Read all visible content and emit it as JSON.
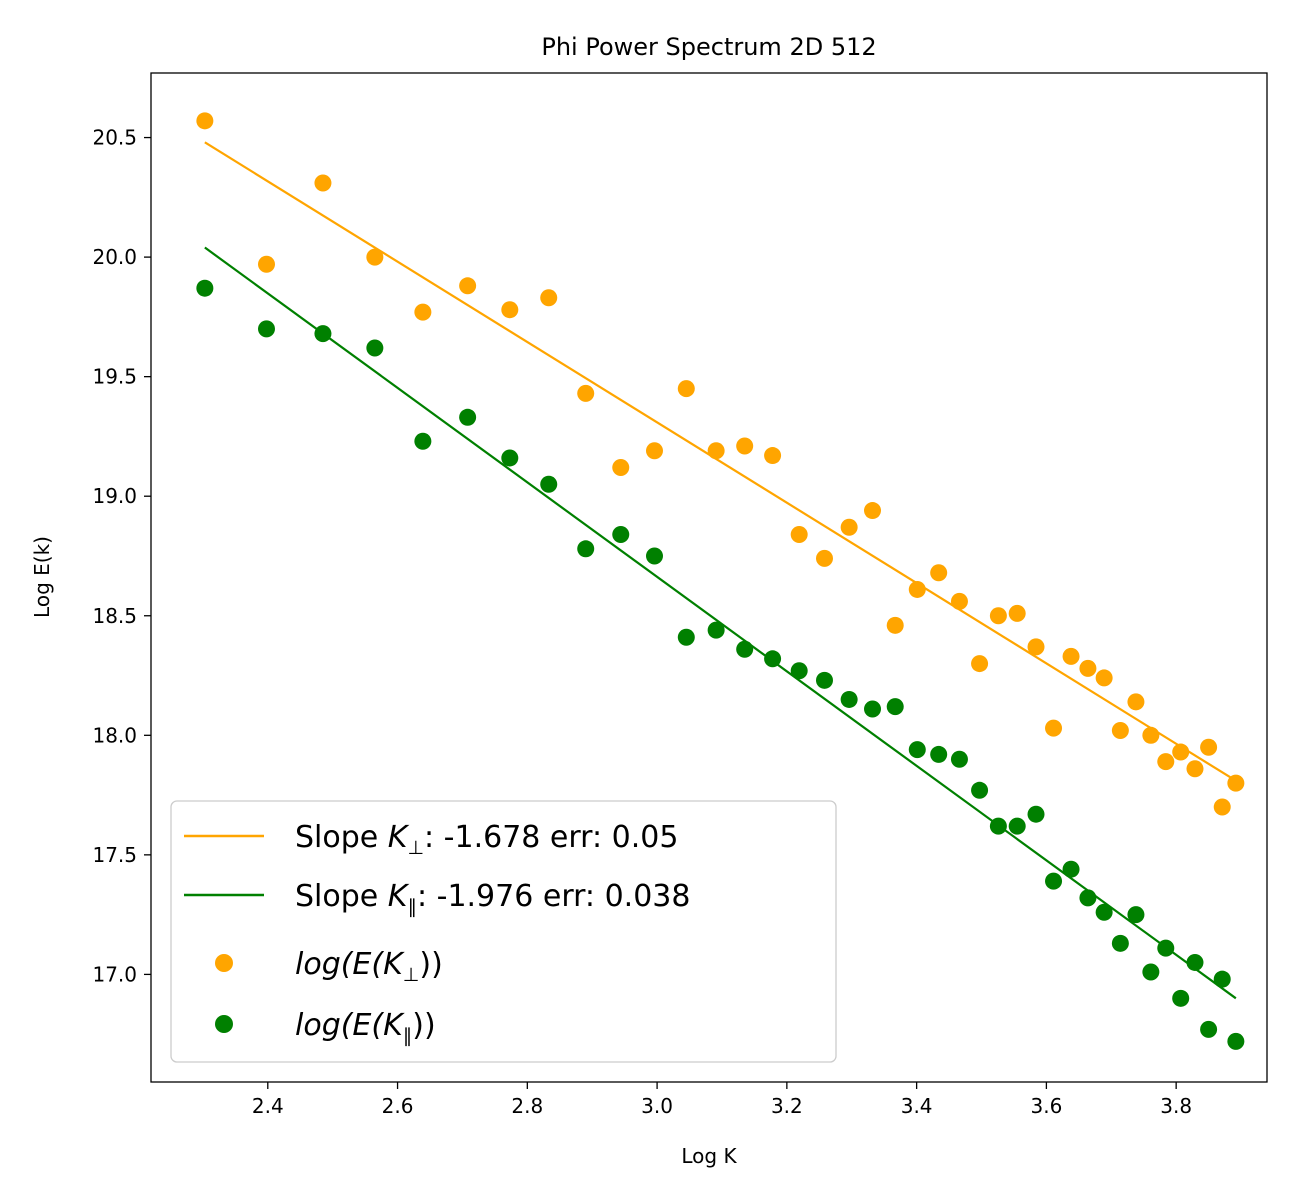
{
  "chart_data": {
    "type": "scatter",
    "title": "Phi Power Spectrum 2D 512",
    "xlabel": "Log K",
    "ylabel": "Log E(k)",
    "xlim": [
      2.22,
      3.94
    ],
    "ylim": [
      16.55,
      20.77
    ],
    "xticks": [
      2.4,
      2.6,
      2.8,
      3.0,
      3.2,
      3.4,
      3.6,
      3.8
    ],
    "xtick_labels": [
      "2.4",
      "2.6",
      "2.8",
      "3.0",
      "3.2",
      "3.4",
      "3.6",
      "3.8"
    ],
    "yticks": [
      17.0,
      17.5,
      18.0,
      18.5,
      19.0,
      19.5,
      20.0,
      20.5
    ],
    "ytick_labels": [
      "17.0",
      "17.5",
      "18.0",
      "18.5",
      "19.0",
      "19.5",
      "20.0",
      "20.5"
    ],
    "grid": false,
    "legend_position": "lower-left",
    "x": [
      2.303,
      2.398,
      2.485,
      2.565,
      2.639,
      2.708,
      2.773,
      2.833,
      2.89,
      2.944,
      2.996,
      3.045,
      3.091,
      3.135,
      3.178,
      3.219,
      3.258,
      3.296,
      3.332,
      3.367,
      3.401,
      3.434,
      3.466,
      3.497,
      3.526,
      3.555,
      3.584,
      3.611,
      3.638,
      3.664,
      3.689,
      3.714,
      3.738,
      3.761,
      3.784,
      3.807,
      3.829,
      3.85,
      3.871,
      3.892
    ],
    "series": [
      {
        "name": "log(E(K⊥))",
        "color": "#ffa500",
        "y": [
          20.57,
          19.97,
          20.31,
          20.0,
          19.77,
          19.88,
          19.78,
          19.83,
          19.43,
          19.12,
          19.19,
          19.45,
          19.19,
          19.21,
          19.17,
          18.84,
          18.74,
          18.87,
          18.94,
          18.46,
          18.61,
          18.68,
          18.56,
          18.3,
          18.5,
          18.51,
          18.37,
          18.03,
          18.33,
          18.28,
          18.24,
          18.02,
          18.14,
          18.0,
          17.89,
          17.93,
          17.86,
          17.95,
          17.7,
          17.8
        ]
      },
      {
        "name": "log(E(K∥))",
        "color": "#008000",
        "y": [
          19.87,
          19.7,
          19.68,
          19.62,
          19.23,
          19.33,
          19.16,
          19.05,
          18.78,
          18.84,
          18.75,
          18.41,
          18.44,
          18.36,
          18.32,
          18.27,
          18.23,
          18.15,
          18.11,
          18.12,
          17.94,
          17.92,
          17.9,
          17.77,
          17.62,
          17.62,
          17.67,
          17.39,
          17.44,
          17.32,
          17.26,
          17.13,
          17.25,
          17.01,
          17.11,
          16.9,
          17.05,
          16.77,
          16.98,
          16.72
        ]
      }
    ],
    "fits": [
      {
        "label_prefix": "Slope ",
        "label_symbol": "K",
        "label_sub": "⊥",
        "label_suffix": ": -1.678 err: 0.05",
        "slope": -1.678,
        "err": 0.05,
        "color": "#ffa500",
        "x": [
          2.303,
          3.892
        ],
        "y": [
          20.48,
          17.81
        ]
      },
      {
        "label_prefix": "Slope ",
        "label_symbol": "K",
        "label_sub": "∥",
        "label_suffix": ": -1.976 err: 0.038",
        "slope": -1.976,
        "err": 0.038,
        "color": "#008000",
        "x": [
          2.303,
          3.892
        ],
        "y": [
          20.04,
          16.9
        ]
      }
    ],
    "legend": [
      {
        "kind": "line",
        "series_ref": "fit0"
      },
      {
        "kind": "line",
        "series_ref": "fit1"
      },
      {
        "kind": "marker",
        "pre": "log(E(",
        "symbol": "K",
        "sub": "⊥",
        "post": "))"
      },
      {
        "kind": "marker",
        "pre": "log(E(",
        "symbol": "K",
        "sub": "∥",
        "post": "))"
      }
    ]
  }
}
